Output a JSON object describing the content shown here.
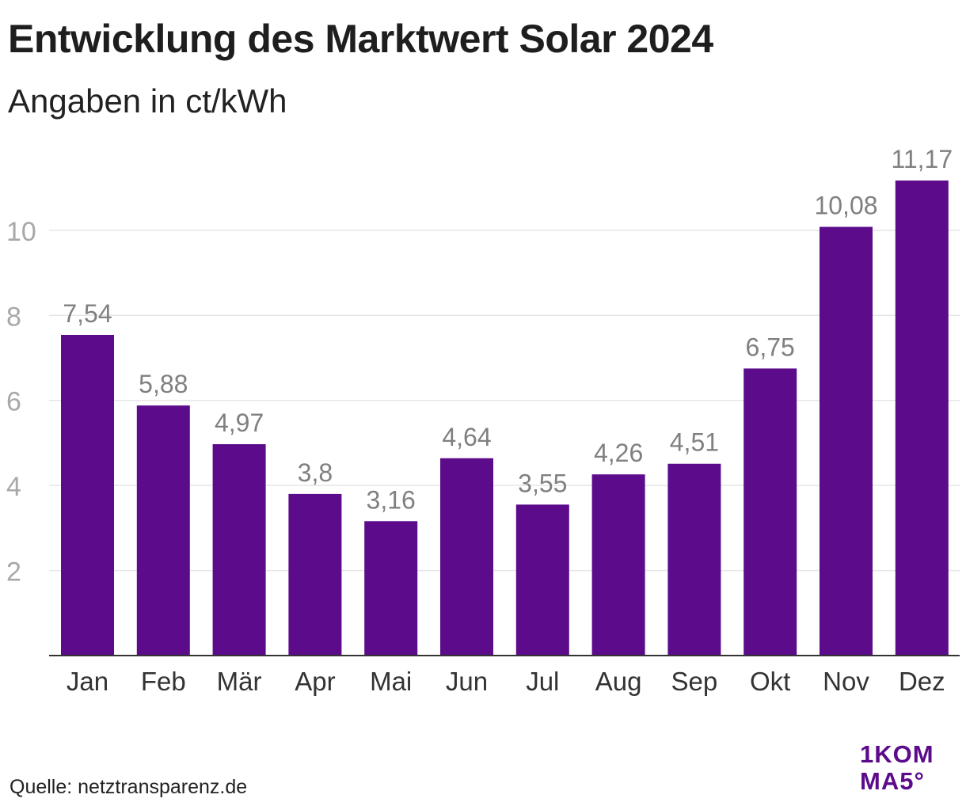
{
  "header": {
    "title": "Entwicklung des Marktwert Solar 2024",
    "subtitle": "Angaben in ct/kWh"
  },
  "footer": {
    "source": "Quelle: netztransparenz.de"
  },
  "logo": {
    "line1": "1KOM",
    "line2": "MA5°",
    "color": "#5c0b8b"
  },
  "chart_data": {
    "type": "bar",
    "title": "Entwicklung des Marktwert Solar 2024",
    "subtitle": "Angaben in ct/kWh",
    "categories": [
      "Jan",
      "Feb",
      "Mär",
      "Apr",
      "Mai",
      "Jun",
      "Jul",
      "Aug",
      "Sep",
      "Okt",
      "Nov",
      "Dez"
    ],
    "values": [
      7.54,
      5.88,
      4.97,
      3.8,
      3.16,
      4.64,
      3.55,
      4.26,
      4.51,
      6.75,
      10.08,
      11.17
    ],
    "value_labels": [
      "7,54",
      "5,88",
      "4,97",
      "3,8",
      "3,16",
      "4,64",
      "3,55",
      "4,26",
      "4,51",
      "6,75",
      "10,08",
      "11,17"
    ],
    "yticks": [
      2,
      4,
      6,
      8,
      10
    ],
    "ylim": [
      0,
      11.17
    ],
    "grid": true,
    "bar_color": "#5c0b8b",
    "grid_color": "#e6e6e6",
    "tick_label_color": "#a8a8a8",
    "value_label_color": "#808080",
    "category_label_color": "#333333"
  }
}
